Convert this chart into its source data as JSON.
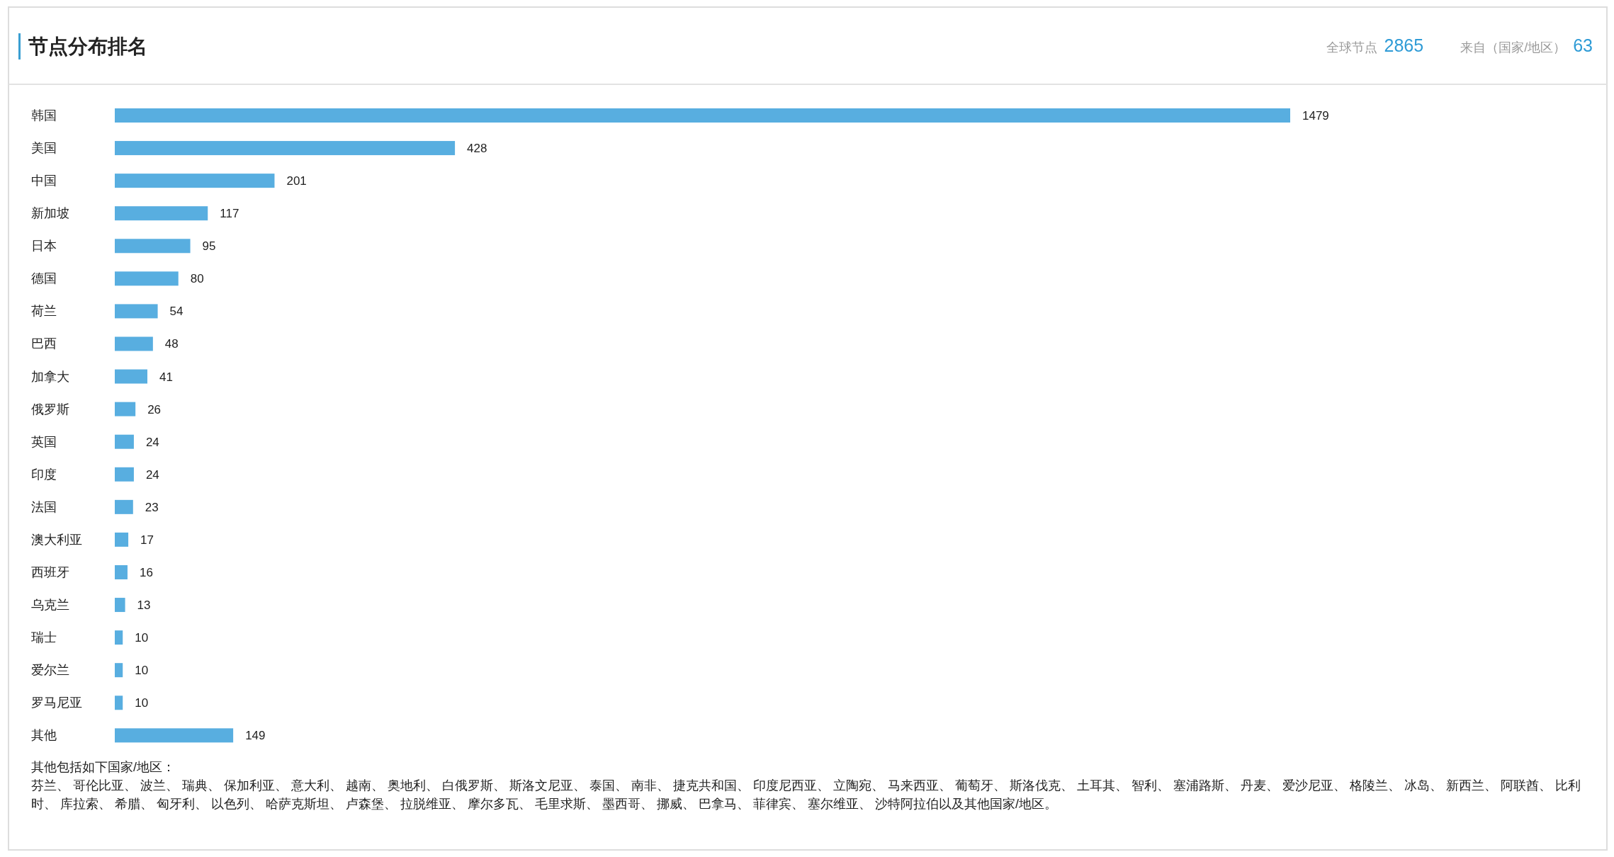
{
  "chart_data": {
    "type": "bar",
    "orientation": "horizontal",
    "title": "节点分布排名",
    "categories": [
      "韩国",
      "美国",
      "中国",
      "新加坡",
      "日本",
      "德国",
      "荷兰",
      "巴西",
      "加拿大",
      "俄罗斯",
      "英国",
      "印度",
      "法国",
      "澳大利亚",
      "西班牙",
      "乌克兰",
      "瑞士",
      "爱尔兰",
      "罗马尼亚",
      "其他"
    ],
    "series": [
      {
        "color": "#58aee0",
        "values": [
          1479,
          428,
          201,
          117,
          95,
          80,
          54,
          48,
          41,
          26,
          24,
          24,
          23,
          17,
          16,
          13,
          10,
          10,
          10,
          149
        ]
      }
    ],
    "data_labels": true,
    "annotations": [
      "全球节点",
      "2865",
      "来自（国家/地区）",
      "63",
      "其他包括如下国家/地区：",
      "芬兰、 哥伦比亚、 波兰、 瑞典、 保加利亚、 意大利、 越南、 奥地利、 白俄罗斯、 斯洛文尼亚、 泰国、 南非、 捷克共和国、 印度尼西亚、 立陶宛、 马来西亚、 葡萄牙、 斯洛伐克、 土耳其、 智利、 塞浦路斯、 丹麦、 爱沙尼亚、 格陵兰、 冰岛、 新西兰、 阿联酋、 比利时、 库拉索、 希腊、 匈牙利、 以色列、 哈萨克斯坦、 卢森堡、 拉脱维亚、 摩尔多瓦、 毛里求斯、 墨西哥、 挪威、 巴拿马、 菲律宾、 塞尔维亚、 沙特阿拉伯以及其他国家/地区。"
    ]
  }
}
